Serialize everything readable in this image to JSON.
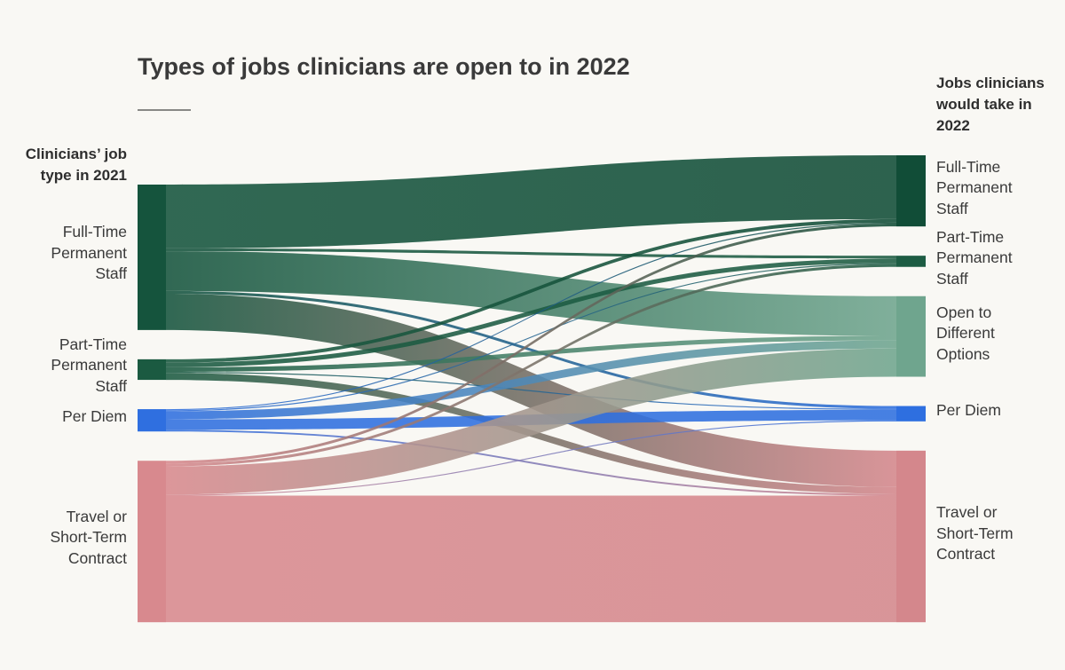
{
  "chart_data": {
    "type": "sankey",
    "title": "Types of jobs clinicians are open to in 2022",
    "source_header": "Clinicians’ job type in 2021",
    "target_header": "Jobs clinicians would take in 2022",
    "sources": [
      {
        "name": "Full-Time Permanent Staff",
        "color": "#15543d"
      },
      {
        "name": "Part-Time Permanent Staff",
        "color": "#1b5a41"
      },
      {
        "name": "Per Diem",
        "color": "#2f6fe0"
      },
      {
        "name": "Travel or Short-Term Contract",
        "color": "#d8898e"
      }
    ],
    "targets": [
      {
        "name": "Full-Time Permanent Staff",
        "color": "#114d37"
      },
      {
        "name": "Part-Time Permanent Staff",
        "color": "#1d5c43"
      },
      {
        "name": "Open to Different Options",
        "color": "#6fa58e"
      },
      {
        "name": "Per Diem",
        "color": "#2e6fe0"
      },
      {
        "name": "Travel or Short-Term Contract",
        "color": "#d4878c"
      }
    ],
    "links": [
      {
        "source": 0,
        "target": 0,
        "value": 18.3
      },
      {
        "source": 0,
        "target": 1,
        "value": 0.8
      },
      {
        "source": 0,
        "target": 2,
        "value": 11.4
      },
      {
        "source": 0,
        "target": 3,
        "value": 0.8
      },
      {
        "source": 0,
        "target": 4,
        "value": 10.4
      },
      {
        "source": 1,
        "target": 0,
        "value": 1
      },
      {
        "source": 1,
        "target": 1,
        "value": 1.3
      },
      {
        "source": 1,
        "target": 2,
        "value": 1.3
      },
      {
        "source": 1,
        "target": 3,
        "value": 0.3
      },
      {
        "source": 1,
        "target": 4,
        "value": 2
      },
      {
        "source": 2,
        "target": 0,
        "value": 0.3
      },
      {
        "source": 2,
        "target": 1,
        "value": 0.3
      },
      {
        "source": 2,
        "target": 2,
        "value": 2.3
      },
      {
        "source": 2,
        "target": 3,
        "value": 3
      },
      {
        "source": 2,
        "target": 4,
        "value": 0.5
      },
      {
        "source": 3,
        "target": 0,
        "value": 0.8
      },
      {
        "source": 3,
        "target": 1,
        "value": 0.8
      },
      {
        "source": 3,
        "target": 2,
        "value": 8.1
      },
      {
        "source": 3,
        "target": 3,
        "value": 0.3
      },
      {
        "source": 3,
        "target": 4,
        "value": 36.3
      }
    ]
  }
}
